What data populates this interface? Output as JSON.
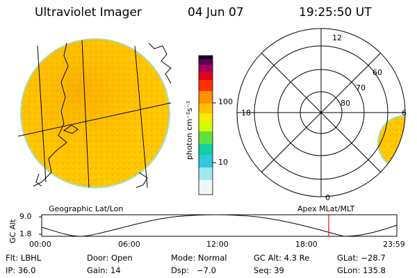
{
  "header": {
    "instrument": "Ultraviolet Imager",
    "date": "04 Jun 07",
    "time": "19:25:50 UT"
  },
  "colorbar": {
    "unit_label": "photon cm⁻²s⁻¹",
    "tick_labels": [
      "100",
      "10"
    ],
    "colors": [
      "#1a0020",
      "#5a0050",
      "#a00060",
      "#e00020",
      "#ff5000",
      "#ffa000",
      "#ffd000",
      "#ffff00",
      "#c0ff00",
      "#40e040",
      "#00c8c8",
      "#80e8f0",
      "#d8f4f8",
      "#f4f4f4"
    ]
  },
  "geo_panel": {
    "caption": "Geographic Lat/Lon"
  },
  "polar_panel": {
    "caption": "Apex MLat/MLT",
    "mlt_labels": {
      "top": "12",
      "left": "18",
      "right": "6",
      "bottom": "0"
    },
    "lat_labels": [
      "60",
      "70",
      "80"
    ]
  },
  "altitude_plot": {
    "ylabel": "GC Alt",
    "y_ticks": [
      "9.0",
      "1.8"
    ],
    "x_ticks": [
      "00:00",
      "06:00",
      "12:00",
      "18:00",
      "23:59"
    ],
    "current_time_marker": "19:25:50"
  },
  "info": {
    "filter": "Flt: LBHL",
    "door": "Door: Open",
    "mode": "Mode: Normal",
    "gc_alt": "GC Alt: 4.3 Re",
    "glat": "GLat: −28.7",
    "ip": "IP: 36.0",
    "gain": "Gain: 14",
    "dsp": "Dsp:   −7.0",
    "seq": "Seq: 39",
    "glon": "GLon: 135.8"
  },
  "colors": {
    "disk_fill": "#ffc400",
    "disk_dark": "#f0a000",
    "disk_edge": "#9be3d0",
    "marker": "#ff0000"
  }
}
